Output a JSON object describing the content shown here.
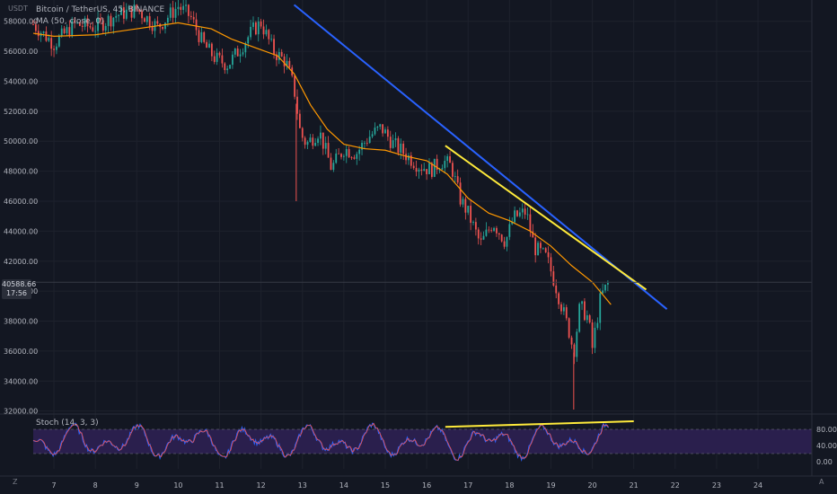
{
  "legend": {
    "title": "Bitcoin / TetherUS, 45, BINANCE",
    "ma": "MA (50, close, 0)",
    "stoch": "Stoch (14, 3, 3)"
  },
  "axis": {
    "currency": "USDT",
    "z_label": "Z",
    "a_label": "A"
  },
  "price_label": {
    "value": "40588.66",
    "time": "17:56"
  },
  "colors": {
    "background": "#131722",
    "grid": "#1e222d",
    "up": "#26a69a",
    "down": "#ef5350",
    "ma": "#ff9800",
    "trendline_blue": "#2962ff",
    "trendline_yellow": "#ffeb3b",
    "stoch_fill": "#2a1f4d",
    "stoch_k": "#2962ff",
    "stoch_d": "#ef5350"
  },
  "chart_data": {
    "type": "candlestick",
    "symbol": "Bitcoin / TetherUS",
    "interval": "45",
    "exchange": "BINANCE",
    "ylim": [
      31800,
      59300
    ],
    "y_ticks": [
      "58000.00",
      "56000.00",
      "54000.00",
      "52000.00",
      "50000.00",
      "48000.00",
      "46000.00",
      "44000.00",
      "42000.00",
      "40000.00",
      "38000.00",
      "36000.00",
      "34000.00",
      "32000.00"
    ],
    "x_ticks": [
      "7",
      "8",
      "9",
      "10",
      "11",
      "12",
      "13",
      "14",
      "15",
      "16",
      "17",
      "18",
      "19",
      "20",
      "21",
      "22",
      "23",
      "24"
    ],
    "x_range_days": [
      6.5,
      25.3
    ],
    "price_path": [
      [
        6.5,
        57800
      ],
      [
        7.0,
        56500
      ],
      [
        7.5,
        57800
      ],
      [
        8.0,
        57600
      ],
      [
        8.5,
        58400
      ],
      [
        9.0,
        58800
      ],
      [
        9.5,
        57600
      ],
      [
        10.0,
        59000
      ],
      [
        10.3,
        58300
      ],
      [
        10.6,
        56500
      ],
      [
        10.9,
        55500
      ],
      [
        11.2,
        55100
      ],
      [
        11.5,
        56200
      ],
      [
        11.8,
        57400
      ],
      [
        12.0,
        57900
      ],
      [
        12.3,
        56000
      ],
      [
        12.6,
        55300
      ],
      [
        12.8,
        53500
      ],
      [
        12.95,
        50500
      ],
      [
        13.1,
        49800
      ],
      [
        13.4,
        50700
      ],
      [
        13.7,
        48200
      ],
      [
        14.0,
        49500
      ],
      [
        14.3,
        49200
      ],
      [
        14.6,
        50300
      ],
      [
        14.9,
        50900
      ],
      [
        15.2,
        49800
      ],
      [
        15.5,
        49100
      ],
      [
        15.8,
        48400
      ],
      [
        16.1,
        48100
      ],
      [
        16.4,
        48700
      ],
      [
        16.6,
        48300
      ],
      [
        16.8,
        46200
      ],
      [
        17.0,
        45200
      ],
      [
        17.3,
        43100
      ],
      [
        17.6,
        44600
      ],
      [
        17.9,
        43300
      ],
      [
        18.1,
        44900
      ],
      [
        18.4,
        45300
      ],
      [
        18.6,
        42900
      ],
      [
        18.9,
        42200
      ],
      [
        19.1,
        40500
      ],
      [
        19.3,
        38600
      ],
      [
        19.45,
        37200
      ],
      [
        19.55,
        35900
      ],
      [
        19.7,
        39000
      ],
      [
        19.9,
        38200
      ],
      [
        20.0,
        36200
      ],
      [
        20.2,
        39600
      ],
      [
        20.4,
        40588
      ]
    ],
    "wicks": [
      {
        "x": 12.85,
        "low": 46000
      },
      {
        "x": 19.55,
        "low": 32100
      }
    ],
    "ma_50": [
      [
        6.5,
        57200
      ],
      [
        7.0,
        57000
      ],
      [
        8.0,
        57100
      ],
      [
        9.0,
        57500
      ],
      [
        10.0,
        57900
      ],
      [
        10.8,
        57500
      ],
      [
        11.3,
        56800
      ],
      [
        12.0,
        56100
      ],
      [
        12.4,
        55700
      ],
      [
        12.8,
        54500
      ],
      [
        13.2,
        52400
      ],
      [
        13.6,
        50800
      ],
      [
        14.0,
        49800
      ],
      [
        14.5,
        49500
      ],
      [
        15.0,
        49400
      ],
      [
        15.5,
        49000
      ],
      [
        16.0,
        48700
      ],
      [
        16.5,
        47800
      ],
      [
        17.0,
        46200
      ],
      [
        17.5,
        45200
      ],
      [
        18.0,
        44700
      ],
      [
        18.5,
        44000
      ],
      [
        19.0,
        43000
      ],
      [
        19.5,
        41700
      ],
      [
        20.0,
        40600
      ],
      [
        20.45,
        39100
      ]
    ],
    "trendlines": [
      {
        "color": "blue",
        "from": [
          12.8,
          59100
        ],
        "to": [
          21.8,
          38800
        ]
      },
      {
        "color": "yellow",
        "from": [
          16.45,
          49700
        ],
        "to": [
          21.3,
          40100
        ]
      }
    ],
    "stochastic": {
      "params": "14, 3, 3",
      "upper_band": 80,
      "lower_band": 20,
      "y_ticks": [
        "80.00",
        "40.00",
        "0.00"
      ],
      "divergence_line": {
        "from": [
          16.45,
          86
        ],
        "to": [
          21.0,
          100
        ]
      }
    }
  }
}
